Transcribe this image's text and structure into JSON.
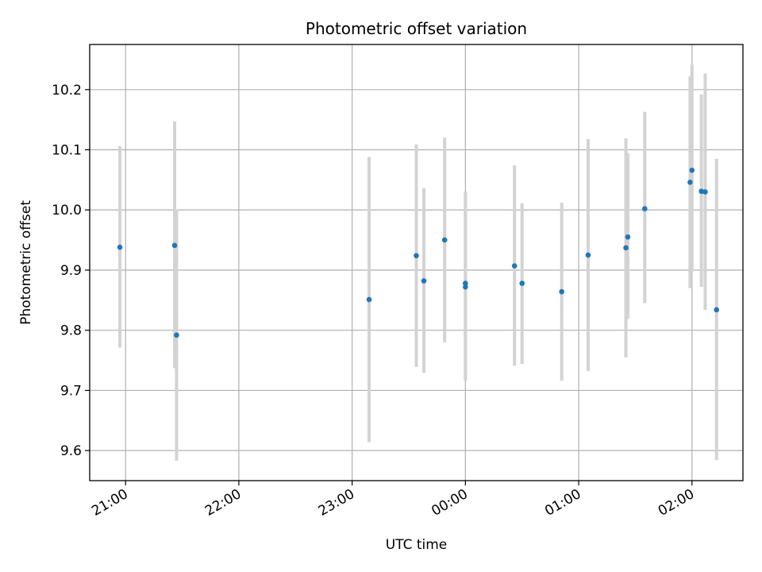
{
  "chart_data": {
    "type": "scatter",
    "title": "Photometric offset variation",
    "xlabel": "UTC time",
    "ylabel": "Photometric offset",
    "x_axis": "time",
    "xlim": [
      "20:41",
      "26:27"
    ],
    "ylim": [
      9.55,
      10.275
    ],
    "grid": true,
    "x_ticks": [
      {
        "at": "21:00",
        "label": "21:00"
      },
      {
        "at": "22:00",
        "label": "22:00"
      },
      {
        "at": "23:00",
        "label": "23:00"
      },
      {
        "at": "24:00",
        "label": "00:00"
      },
      {
        "at": "25:00",
        "label": "01:00"
      },
      {
        "at": "26:00",
        "label": "02:00"
      }
    ],
    "y_ticks": [
      9.6,
      9.7,
      9.8,
      9.9,
      10.0,
      10.1,
      10.2
    ],
    "colors": {
      "point": "#1f77b4",
      "error_bar": "#d3d3d3",
      "grid": "#b0b0b0"
    },
    "points": [
      {
        "x": "20:57",
        "y": 9.938,
        "lo": 9.771,
        "hi": 10.106
      },
      {
        "x": "21:26",
        "y": 9.941,
        "lo": 9.737,
        "hi": 10.147
      },
      {
        "x": "21:27",
        "y": 9.792,
        "lo": 9.583,
        "hi": 10.001
      },
      {
        "x": "23:09",
        "y": 9.851,
        "lo": 9.614,
        "hi": 10.088
      },
      {
        "x": "23:34",
        "y": 9.924,
        "lo": 9.739,
        "hi": 10.109
      },
      {
        "x": "23:38",
        "y": 9.882,
        "lo": 9.729,
        "hi": 10.036
      },
      {
        "x": "23:49",
        "y": 9.95,
        "lo": 9.78,
        "hi": 10.12
      },
      {
        "x": "24:00",
        "y": 9.878,
        "lo": 9.725,
        "hi": 10.031
      },
      {
        "x": "24:00",
        "y": 9.872,
        "lo": 9.716,
        "hi": 10.028
      },
      {
        "x": "24:26",
        "y": 9.907,
        "lo": 9.741,
        "hi": 10.074
      },
      {
        "x": "24:30",
        "y": 9.878,
        "lo": 9.744,
        "hi": 10.011
      },
      {
        "x": "24:51",
        "y": 9.864,
        "lo": 9.716,
        "hi": 10.012
      },
      {
        "x": "25:05",
        "y": 9.925,
        "lo": 9.732,
        "hi": 10.118
      },
      {
        "x": "25:25",
        "y": 9.937,
        "lo": 9.755,
        "hi": 10.119
      },
      {
        "x": "25:26",
        "y": 9.955,
        "lo": 9.819,
        "hi": 10.094
      },
      {
        "x": "25:35",
        "y": 10.002,
        "lo": 9.845,
        "hi": 10.163
      },
      {
        "x": "25:59",
        "y": 10.046,
        "lo": 9.87,
        "hi": 10.222
      },
      {
        "x": "26:00",
        "y": 10.066,
        "lo": 9.898,
        "hi": 10.242
      },
      {
        "x": "26:05",
        "y": 10.031,
        "lo": 9.872,
        "hi": 10.192
      },
      {
        "x": "26:07",
        "y": 10.03,
        "lo": 9.834,
        "hi": 10.227
      },
      {
        "x": "26:13",
        "y": 9.834,
        "lo": 9.584,
        "hi": 10.085
      }
    ]
  }
}
